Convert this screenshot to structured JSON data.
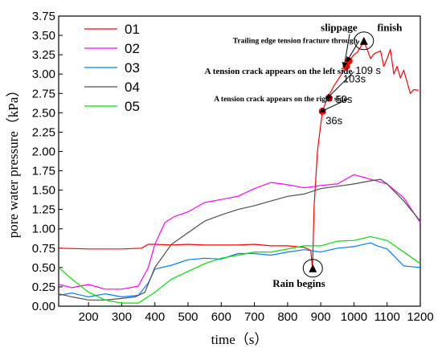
{
  "chart_data": {
    "type": "line",
    "xlabel": "time（s）",
    "ylabel": "pore water pressure（kPa）",
    "xlim": [
      110,
      1200
    ],
    "ylim": [
      0,
      3.75
    ],
    "xticks": [
      200,
      300,
      400,
      500,
      600,
      700,
      800,
      900,
      1000,
      1100,
      1200
    ],
    "yticks": [
      "0.00",
      "0.25",
      "0.50",
      "0.75",
      "1.00",
      "1.25",
      "1.50",
      "1.75",
      "2.00",
      "2.25",
      "2.50",
      "2.75",
      "3.00",
      "3.25",
      "3.50",
      "3.75"
    ],
    "legend_position": "top-left",
    "series": [
      {
        "name": "01",
        "color": "#ff0000",
        "x": [
          110,
          200,
          300,
          360,
          380,
          400,
          450,
          500,
          550,
          600,
          650,
          700,
          750,
          800,
          850,
          870,
          875,
          880,
          890,
          905,
          920,
          940,
          960,
          975,
          985,
          1000,
          1010,
          1020,
          1030,
          1040,
          1050,
          1060,
          1070,
          1080,
          1090,
          1100,
          1110,
          1120,
          1130,
          1140,
          1150,
          1160,
          1170,
          1180,
          1195
        ],
        "y": [
          0.75,
          0.74,
          0.74,
          0.75,
          0.8,
          0.8,
          0.79,
          0.8,
          0.79,
          0.79,
          0.79,
          0.8,
          0.78,
          0.78,
          0.76,
          0.72,
          0.48,
          1.3,
          2.0,
          2.52,
          2.69,
          2.85,
          2.98,
          3.1,
          3.17,
          3.25,
          3.28,
          3.35,
          3.42,
          3.32,
          3.2,
          3.26,
          3.28,
          3.3,
          3.1,
          3.2,
          3.32,
          3.0,
          3.1,
          2.95,
          3.05,
          2.9,
          2.75,
          2.8,
          2.79
        ]
      },
      {
        "name": "02",
        "color": "#ff00ff",
        "x": [
          110,
          150,
          200,
          250,
          300,
          350,
          380,
          400,
          430,
          460,
          500,
          550,
          600,
          650,
          700,
          750,
          800,
          850,
          900,
          950,
          1000,
          1050,
          1100,
          1150,
          1200
        ],
        "y": [
          0.28,
          0.24,
          0.28,
          0.22,
          0.22,
          0.26,
          0.5,
          0.8,
          1.08,
          1.16,
          1.22,
          1.34,
          1.38,
          1.42,
          1.52,
          1.6,
          1.57,
          1.53,
          1.56,
          1.58,
          1.7,
          1.64,
          1.58,
          1.4,
          1.08
        ]
      },
      {
        "name": "03",
        "color": "#0080ff",
        "x": [
          110,
          150,
          200,
          250,
          300,
          350,
          380,
          400,
          450,
          500,
          550,
          600,
          650,
          700,
          750,
          800,
          850,
          900,
          950,
          1000,
          1050,
          1070,
          1100,
          1150,
          1200
        ],
        "y": [
          0.14,
          0.17,
          0.12,
          0.16,
          0.12,
          0.14,
          0.3,
          0.48,
          0.53,
          0.6,
          0.62,
          0.61,
          0.68,
          0.68,
          0.66,
          0.7,
          0.73,
          0.7,
          0.75,
          0.77,
          0.82,
          0.78,
          0.74,
          0.52,
          0.5
        ]
      },
      {
        "name": "04",
        "color": "#505050",
        "x": [
          110,
          150,
          200,
          250,
          300,
          340,
          370,
          400,
          450,
          500,
          550,
          600,
          650,
          700,
          750,
          800,
          850,
          900,
          950,
          1000,
          1050,
          1080,
          1100,
          1150,
          1200
        ],
        "y": [
          0.16,
          0.12,
          0.08,
          0.08,
          0.1,
          0.12,
          0.18,
          0.5,
          0.8,
          0.95,
          1.1,
          1.18,
          1.25,
          1.3,
          1.36,
          1.42,
          1.45,
          1.52,
          1.55,
          1.58,
          1.62,
          1.64,
          1.58,
          1.36,
          1.1
        ]
      },
      {
        "name": "05",
        "color": "#00e000",
        "x": [
          110,
          150,
          200,
          250,
          300,
          350,
          400,
          450,
          500,
          550,
          600,
          650,
          700,
          750,
          800,
          850,
          900,
          950,
          1000,
          1050,
          1100,
          1150,
          1200
        ],
        "y": [
          0.5,
          0.35,
          0.18,
          0.08,
          0.04,
          0.04,
          0.18,
          0.35,
          0.45,
          0.55,
          0.62,
          0.66,
          0.7,
          0.7,
          0.74,
          0.78,
          0.78,
          0.84,
          0.85,
          0.9,
          0.85,
          0.7,
          0.55
        ]
      }
    ],
    "markers": [
      {
        "shape": "circle",
        "x": 905,
        "y": 2.52,
        "label": "36s",
        "label_dx": 4,
        "label_dy": 16
      },
      {
        "shape": "circle",
        "x": 925,
        "y": 2.69,
        "label": "50s",
        "label_dx": 8,
        "label_dy": 6
      },
      {
        "shape": "circle",
        "x": 977,
        "y": 3.1,
        "label": "103s",
        "label_dx": -4,
        "label_dy": 20
      },
      {
        "shape": "circle",
        "x": 985,
        "y": 3.17,
        "label": "109 s",
        "label_dx": 8,
        "label_dy": 16
      },
      {
        "shape": "triangle",
        "x": 876,
        "y": 0.48,
        "label": "",
        "label_dx": 0,
        "label_dy": 0
      },
      {
        "shape": "triangle",
        "x": 1030,
        "y": 3.42,
        "label": "",
        "label_dx": 0,
        "label_dy": 0
      }
    ],
    "annotations": [
      {
        "text": "Rain begins",
        "x": 755,
        "y": 0.25,
        "size": "ann-big",
        "arrow_to": null,
        "circle_at": [
          876,
          0.48
        ]
      },
      {
        "text": "A tension crack appears on the right side",
        "x": 578,
        "y": 2.65,
        "size": "ann-tiny",
        "arrow_to": [
          905,
          2.52
        ],
        "circle_at": null
      },
      {
        "text": "A tension crack appears on the left side",
        "x": 550,
        "y": 3.0,
        "size": "ann-small",
        "arrow_to": [
          925,
          2.69
        ],
        "circle_at": null
      },
      {
        "text": "Trailing edge tension fracture through",
        "x": 635,
        "y": 3.4,
        "size": "ann-tiny",
        "arrow_to": [
          985,
          3.17
        ],
        "circle_at": null
      },
      {
        "text": "slippage",
        "x": 900,
        "y": 3.56,
        "size": "ann-big",
        "arrow_to": [
          977,
          3.1
        ],
        "circle_at": null
      },
      {
        "text": "finish",
        "x": 1070,
        "y": 3.56,
        "size": "ann-big",
        "arrow_to": null,
        "circle_at": [
          1030,
          3.42
        ]
      }
    ]
  }
}
